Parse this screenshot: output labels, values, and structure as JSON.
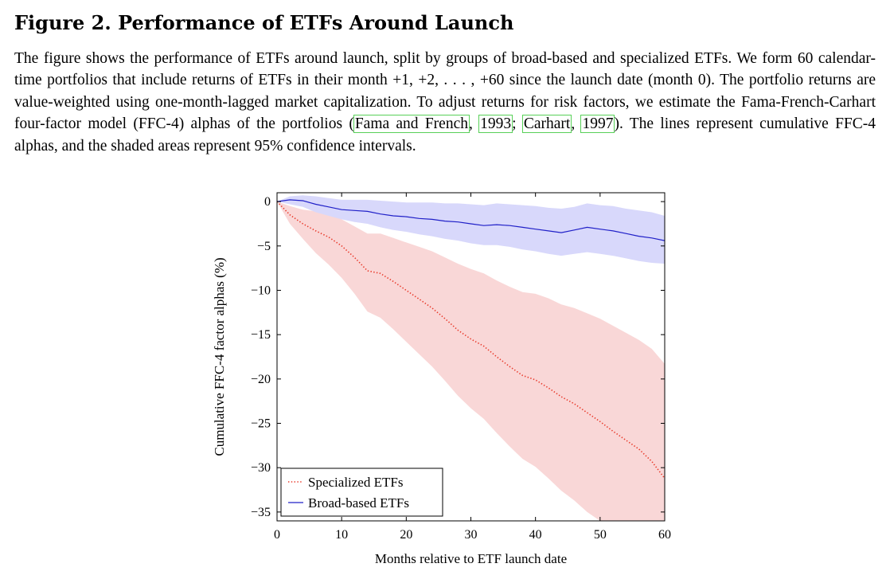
{
  "figure": {
    "title": "Figure 2. Performance of ETFs Around Launch",
    "caption": {
      "s1": "The figure shows the performance of ETFs around launch, split by groups of broad-based and specialized ETFs. We form 60 calendar-time portfolios that include returns of ETFs in their month +1, +2, . . . , +60 since the launch date (month 0). The portfolio returns are value-weighted using one-month-lagged market capitalization. To adjust returns for risk factors, we estimate the Fama-French-Carhart four-factor model (FFC-4) alphas of the portfolios (",
      "cite1_author": "Fama and French",
      "sep1": ", ",
      "cite1_year": "1993",
      "sep2": "; ",
      "cite2_author": "Carhart",
      "sep3": ", ",
      "cite2_year": "1997",
      "s2": "). The lines represent cumulative FFC-4 alphas, and the shaded areas represent 95% confidence intervals."
    },
    "citation_outline_color": "#58d058"
  },
  "chart_data": {
    "type": "line",
    "xlabel": "Months relative to ETF launch date",
    "ylabel": "Cumulative FFC-4 factor alphas (%)",
    "xlim": [
      0,
      60
    ],
    "ylim": [
      -36,
      1
    ],
    "xticks": [
      0,
      10,
      20,
      30,
      40,
      50,
      60
    ],
    "yticks": [
      0,
      -5,
      -10,
      -15,
      -20,
      -25,
      -30,
      -35
    ],
    "grid": false,
    "legend_position": "bottom-left",
    "series": [
      {
        "name": "Specialized ETFs",
        "color": "#e8392a",
        "band_color": "#f9d7d7",
        "style": "dotted",
        "x": [
          0,
          2,
          4,
          6,
          8,
          10,
          12,
          14,
          16,
          18,
          20,
          22,
          24,
          26,
          28,
          30,
          32,
          34,
          36,
          38,
          40,
          42,
          44,
          46,
          48,
          50,
          52,
          54,
          56,
          58,
          60
        ],
        "y": [
          0,
          -1.5,
          -2.5,
          -3.3,
          -4.0,
          -5.0,
          -6.3,
          -7.8,
          -8.1,
          -9.0,
          -10.0,
          -11.0,
          -12.0,
          -13.2,
          -14.5,
          -15.5,
          -16.3,
          -17.5,
          -18.6,
          -19.6,
          -20.1,
          -21.0,
          -22.0,
          -22.8,
          -23.8,
          -24.8,
          -25.9,
          -26.9,
          -27.9,
          -29.3,
          -31.2
        ],
        "lower": [
          0,
          -2.5,
          -4.2,
          -5.8,
          -7.1,
          -8.6,
          -10.4,
          -12.4,
          -13.1,
          -14.4,
          -15.8,
          -17.2,
          -18.6,
          -20.2,
          -21.9,
          -23.3,
          -24.5,
          -26.1,
          -27.6,
          -29.0,
          -29.9,
          -31.2,
          -32.6,
          -33.7,
          -35.0,
          -36.0,
          -36.0,
          -36.0,
          -36.0,
          -36.0,
          -36.0
        ],
        "upper": [
          0,
          -0.5,
          -0.9,
          -1.1,
          -1.4,
          -2.0,
          -2.8,
          -3.6,
          -3.6,
          -4.1,
          -4.6,
          -5.1,
          -5.6,
          -6.3,
          -7.0,
          -7.6,
          -8.1,
          -8.9,
          -9.6,
          -10.2,
          -10.4,
          -10.9,
          -11.6,
          -12.0,
          -12.6,
          -13.2,
          -14.0,
          -14.8,
          -15.6,
          -16.6,
          -18.3
        ]
      },
      {
        "name": "Broad-based ETFs",
        "color": "#2020c8",
        "band_color": "#d8d8fb",
        "style": "solid",
        "x": [
          0,
          2,
          4,
          6,
          8,
          10,
          12,
          14,
          16,
          18,
          20,
          22,
          24,
          26,
          28,
          30,
          32,
          34,
          36,
          38,
          40,
          42,
          44,
          46,
          48,
          50,
          52,
          54,
          56,
          58,
          60
        ],
        "y": [
          0,
          0.2,
          0.1,
          -0.3,
          -0.6,
          -0.9,
          -1.0,
          -1.1,
          -1.4,
          -1.6,
          -1.7,
          -1.9,
          -2.0,
          -2.2,
          -2.3,
          -2.5,
          -2.7,
          -2.6,
          -2.7,
          -2.9,
          -3.1,
          -3.3,
          -3.5,
          -3.2,
          -2.9,
          -3.1,
          -3.3,
          -3.6,
          -3.9,
          -4.1,
          -4.4
        ],
        "lower": [
          0,
          -0.3,
          -0.6,
          -1.2,
          -1.6,
          -2.0,
          -2.3,
          -2.5,
          -2.9,
          -3.2,
          -3.4,
          -3.7,
          -3.9,
          -4.2,
          -4.4,
          -4.7,
          -4.9,
          -4.9,
          -5.1,
          -5.4,
          -5.6,
          -5.9,
          -6.1,
          -5.9,
          -5.7,
          -5.9,
          -6.1,
          -6.4,
          -6.7,
          -6.9,
          -7.0
        ],
        "upper": [
          0,
          0.6,
          0.7,
          0.6,
          0.4,
          0.2,
          0.2,
          0.2,
          0.1,
          0.0,
          -0.1,
          -0.1,
          -0.1,
          -0.2,
          -0.2,
          -0.3,
          -0.4,
          -0.2,
          -0.3,
          -0.4,
          -0.5,
          -0.7,
          -0.8,
          -0.6,
          -0.2,
          -0.4,
          -0.5,
          -0.8,
          -1.0,
          -1.2,
          -1.6
        ]
      }
    ]
  }
}
